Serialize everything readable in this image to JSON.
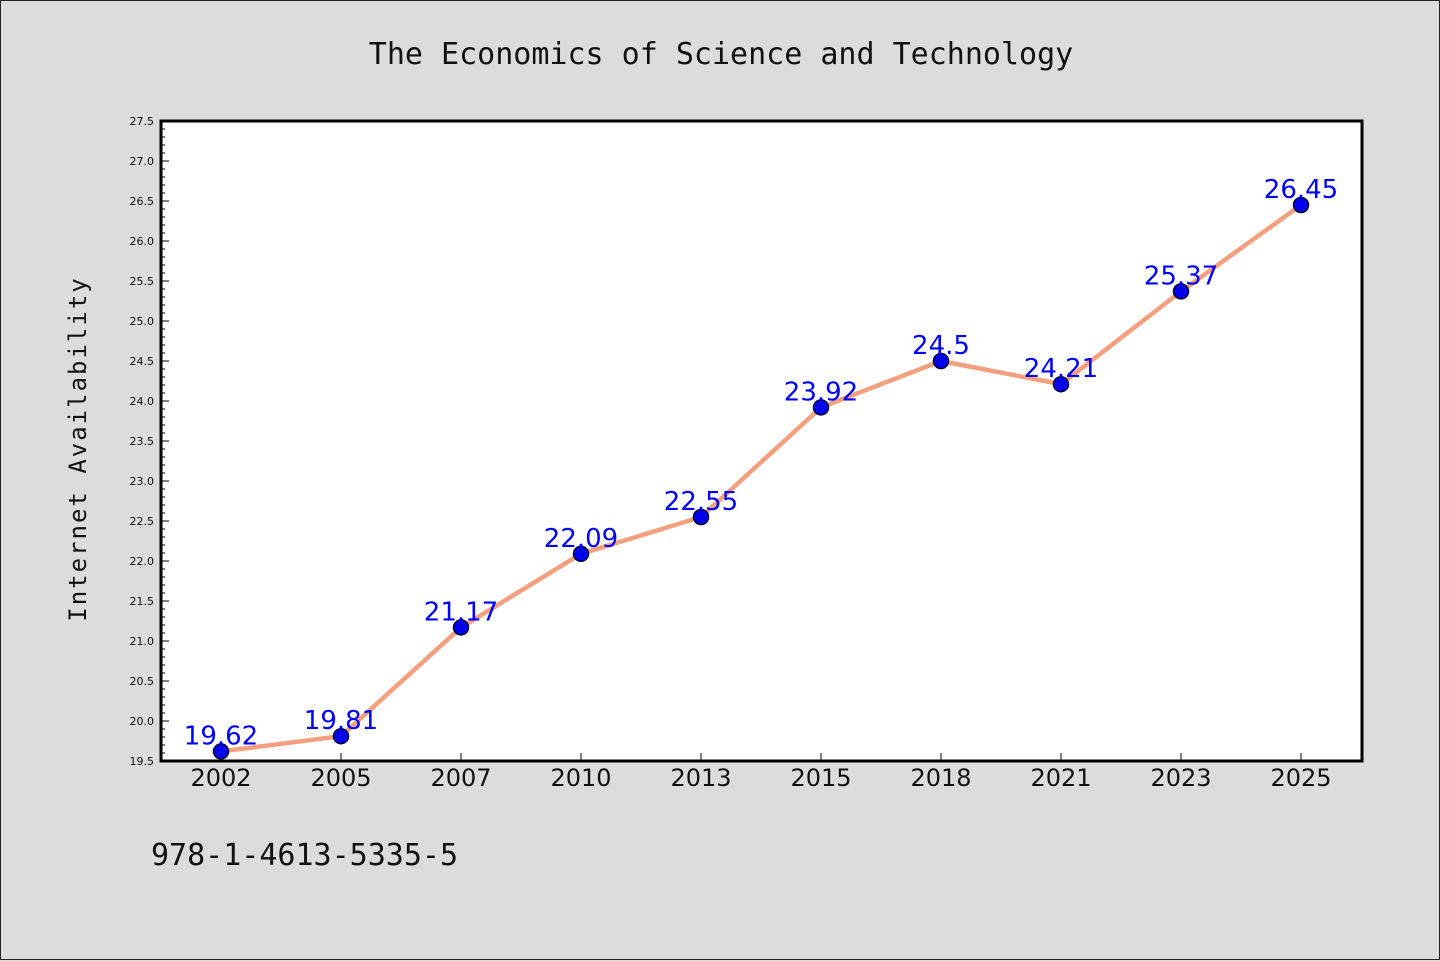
{
  "chart_data": {
    "type": "line",
    "title": "The Economics of Science and Technology",
    "xlabel": "",
    "ylabel": "Internet Availability",
    "categories": [
      "2002",
      "2005",
      "2007",
      "2010",
      "2013",
      "2015",
      "2018",
      "2021",
      "2023",
      "2025"
    ],
    "series": [
      {
        "values": [
          19.62,
          19.81,
          21.17,
          22.09,
          22.55,
          23.92,
          24.5,
          24.21,
          25.37,
          26.45
        ]
      }
    ],
    "data_labels": [
      "19.62",
      "19.81",
      "21.17",
      "22.09",
      "22.55",
      "23.92",
      "24.5",
      "24.21",
      "25.37",
      "26.45"
    ],
    "ylim": [
      19.5,
      27.5
    ],
    "yticks": [
      "19.5",
      "20.0",
      "20.5",
      "21.0",
      "21.5",
      "22.0",
      "22.5",
      "23.0",
      "23.5",
      "24.0",
      "24.5",
      "25.0",
      "25.5",
      "26.0",
      "26.5",
      "27.0",
      "27.5"
    ],
    "grid": false,
    "legend": "none",
    "colors": {
      "line": "#f4a07e",
      "marker_fill": "#0000ee",
      "marker_edge": "#000033",
      "data_label": "#0000ff",
      "background": "#dcdcdc",
      "plot_background": "#ffffff"
    }
  },
  "footer": {
    "isbn": "978-1-4613-5335-5"
  }
}
